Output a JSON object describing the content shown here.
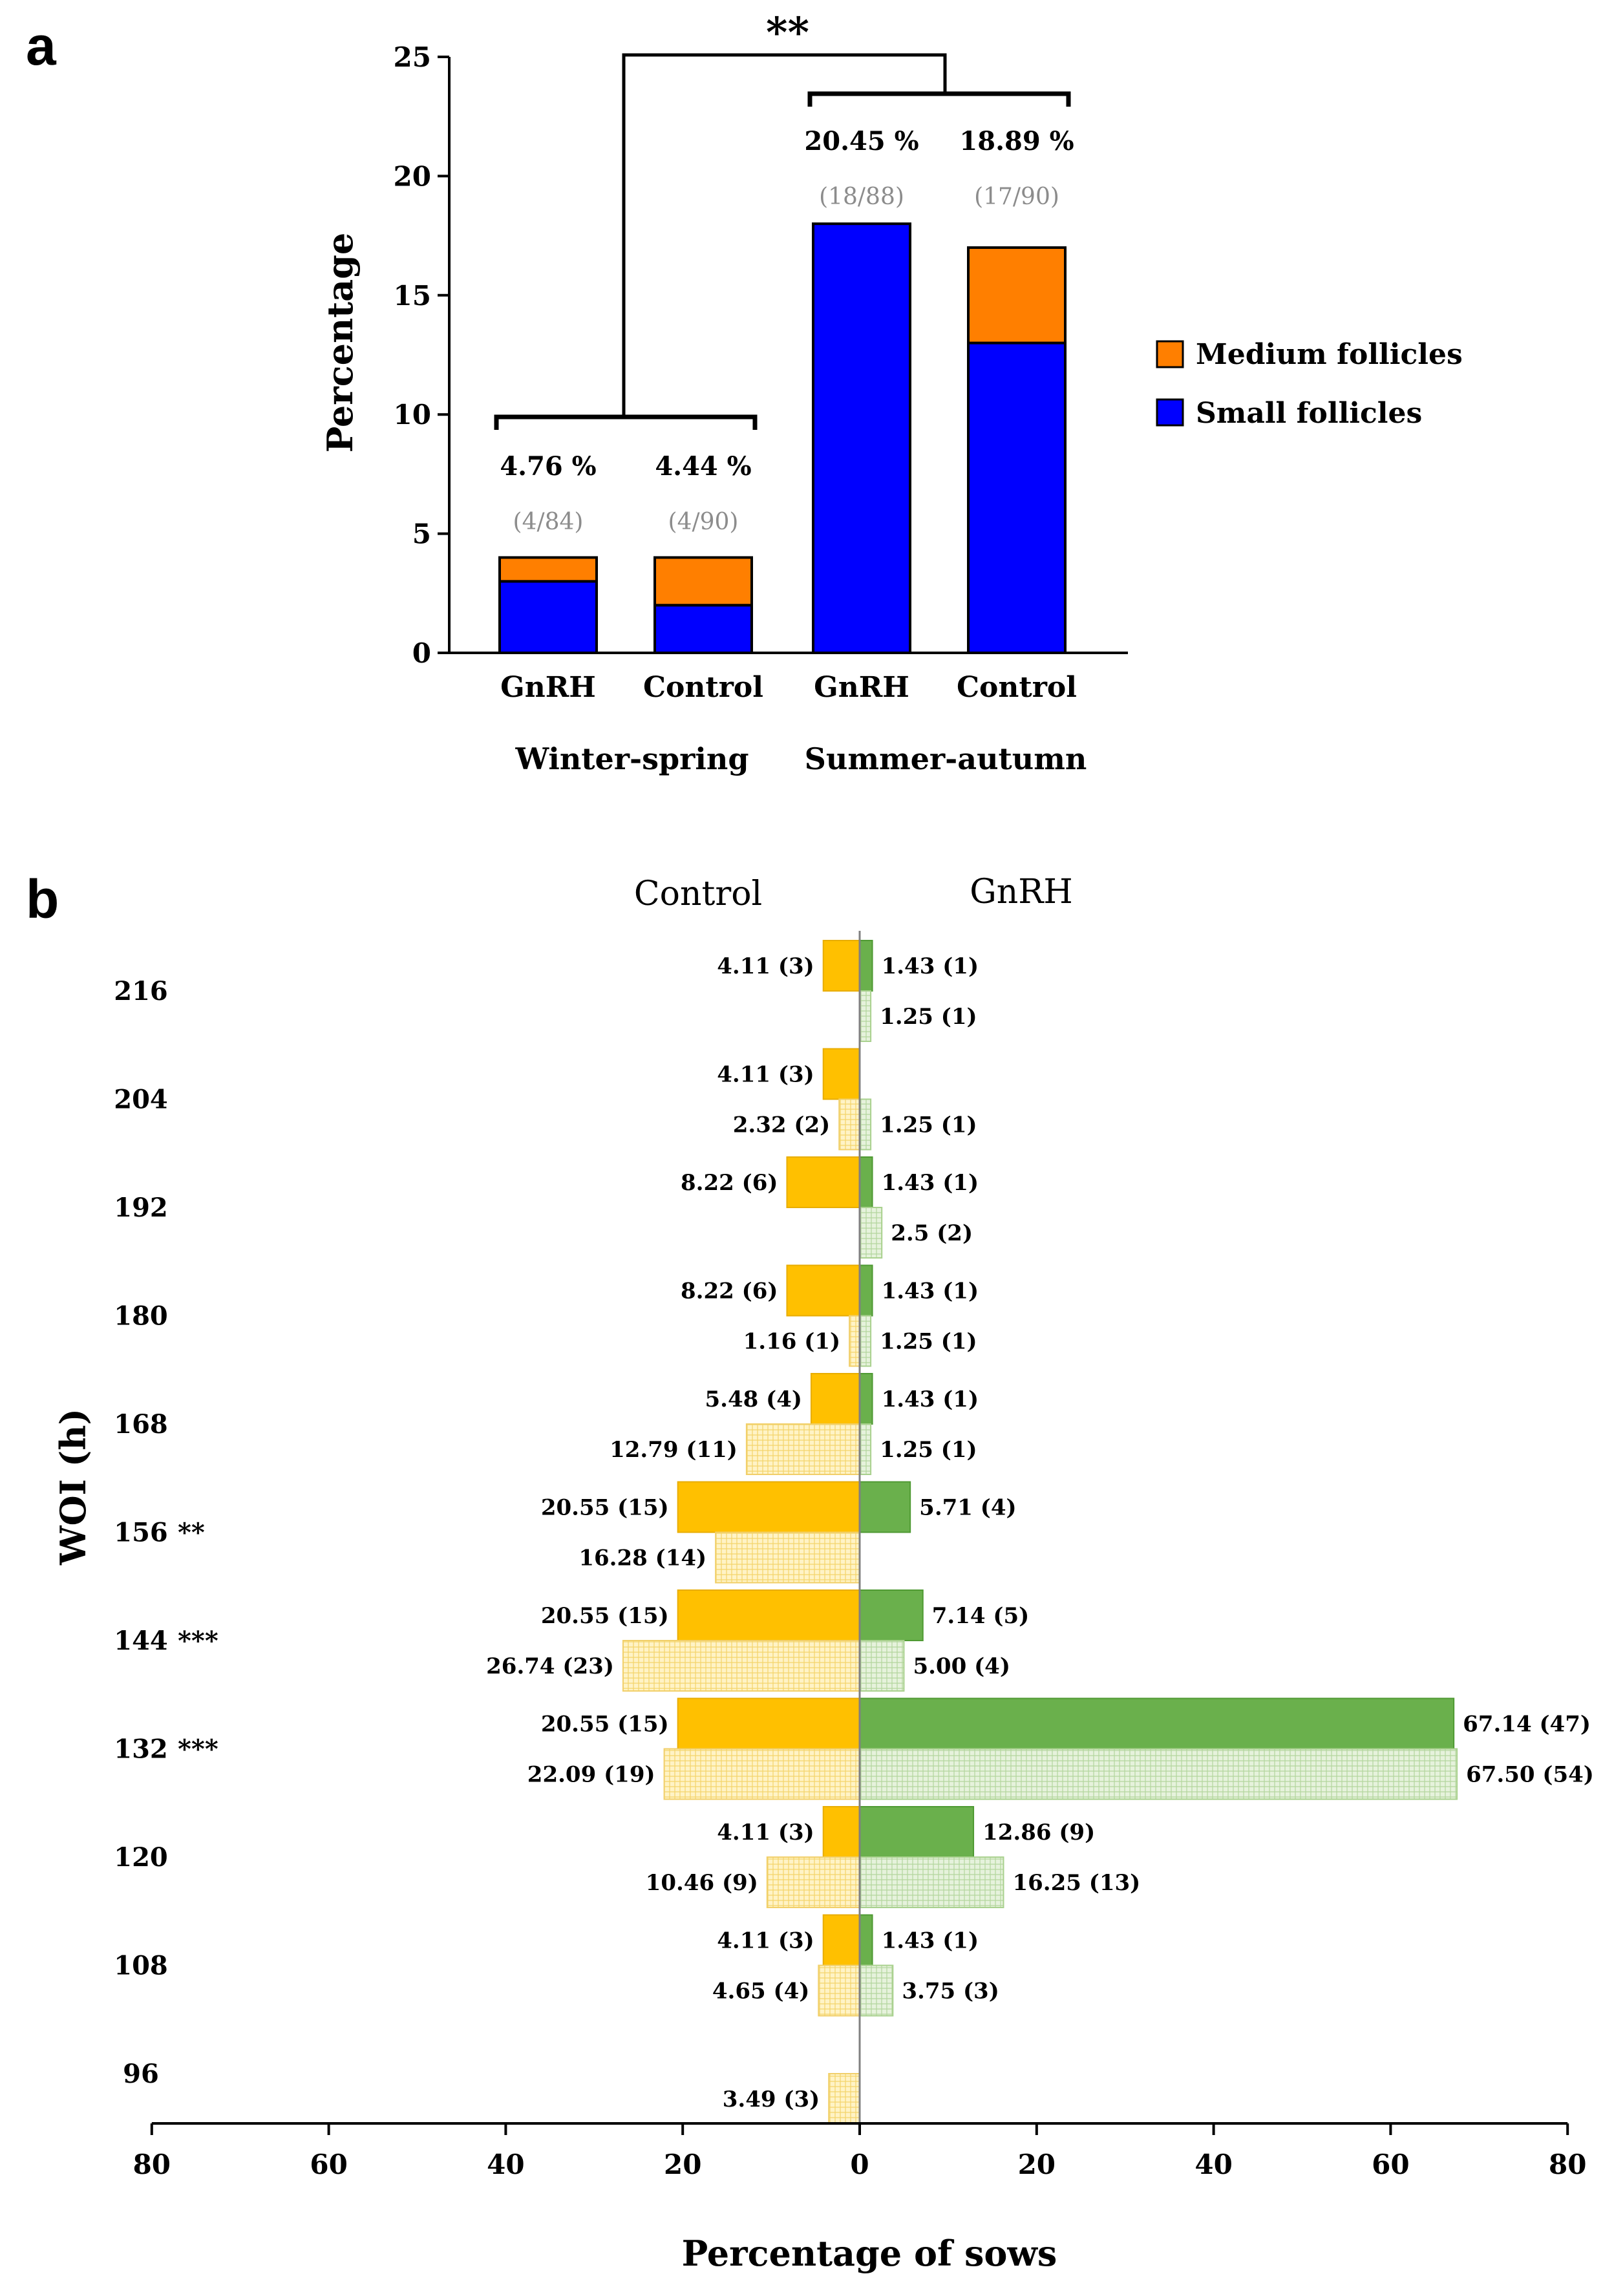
{
  "panel_a_label": "a",
  "panel_b_label": "b",
  "chart_data": [
    {
      "type": "bar",
      "stacked": true,
      "panel": "a",
      "title": "",
      "ylabel": "Percentage",
      "xlabel": "",
      "ylim": [
        0,
        25
      ],
      "yticks": [
        "0",
        "5",
        "10",
        "15",
        "20",
        "25"
      ],
      "categories": [
        "GnRH",
        "Control",
        "GnRH",
        "Control"
      ],
      "groups": [
        "Winter-spring",
        "Summer-autumn"
      ],
      "series": [
        {
          "name": "Small follicles",
          "color": "#0000ff",
          "values": [
            3,
            2,
            18,
            13
          ]
        },
        {
          "name": "Medium follicles",
          "color": "#ff7f00",
          "values": [
            1,
            2,
            0,
            4
          ]
        }
      ],
      "legend": [
        "Medium follicles",
        "Small follicles"
      ],
      "percent_labels": [
        "4.76 %",
        "4.44 %",
        "20.45 %",
        "18.89 %"
      ],
      "fraction_labels": [
        "(4/84)",
        "(4/90)",
        "(18/88)",
        "(17/90)"
      ],
      "significance": "**"
    },
    {
      "type": "bar",
      "orientation": "horizontal",
      "panel": "b",
      "left_title": "Control",
      "right_title": "GnRH",
      "xlabel": "Percentage of sows",
      "ylabel": "WOI (h)",
      "xlim": [
        -80,
        80
      ],
      "xticks": [
        "80",
        "60",
        "40",
        "20",
        "0",
        "20",
        "40",
        "60",
        "80"
      ],
      "colors": {
        "control_solid": "#ffc000",
        "control_hatch": "#fff2c2",
        "gnrh_solid": "#6ab04c",
        "gnrh_hatch": "#e4f1da"
      },
      "rows": [
        {
          "woi": "216",
          "sig": "",
          "control": [
            {
              "v": 4.11,
              "label": "4.11 (3)"
            },
            null
          ],
          "gnrh": [
            {
              "v": 1.43,
              "label": "1.43 (1)"
            },
            {
              "v": 1.25,
              "label": "1.25 (1)"
            }
          ]
        },
        {
          "woi": "204",
          "sig": "",
          "control": [
            {
              "v": 4.11,
              "label": "4.11 (3)"
            },
            {
              "v": 2.32,
              "label": "2.32 (2)"
            }
          ],
          "gnrh": [
            null,
            {
              "v": 1.25,
              "label": "1.25 (1)"
            }
          ]
        },
        {
          "woi": "192",
          "sig": "",
          "control": [
            {
              "v": 8.22,
              "label": "8.22 (6)"
            },
            null
          ],
          "gnrh": [
            {
              "v": 1.43,
              "label": "1.43 (1)"
            },
            {
              "v": 2.5,
              "label": "2.5 (2)"
            }
          ]
        },
        {
          "woi": "180",
          "sig": "",
          "control": [
            {
              "v": 8.22,
              "label": "8.22 (6)"
            },
            {
              "v": 1.16,
              "label": "1.16 (1)"
            }
          ],
          "gnrh": [
            {
              "v": 1.43,
              "label": "1.43 (1)"
            },
            {
              "v": 1.25,
              "label": "1.25 (1)"
            }
          ]
        },
        {
          "woi": "168",
          "sig": "",
          "control": [
            {
              "v": 5.48,
              "label": "5.48 (4)"
            },
            {
              "v": 12.79,
              "label": "12.79 (11)"
            }
          ],
          "gnrh": [
            {
              "v": 1.43,
              "label": "1.43 (1)"
            },
            {
              "v": 1.25,
              "label": "1.25 (1)"
            }
          ]
        },
        {
          "woi": "156",
          "sig": "**",
          "control": [
            {
              "v": 20.55,
              "label": "20.55 (15)"
            },
            {
              "v": 16.28,
              "label": "16.28 (14)"
            }
          ],
          "gnrh": [
            {
              "v": 5.71,
              "label": "5.71 (4)"
            },
            null
          ]
        },
        {
          "woi": "144",
          "sig": "***",
          "control": [
            {
              "v": 20.55,
              "label": "20.55 (15)"
            },
            {
              "v": 26.74,
              "label": "26.74 (23)"
            }
          ],
          "gnrh": [
            {
              "v": 7.14,
              "label": "7.14 (5)"
            },
            {
              "v": 5.0,
              "label": "5.00 (4)"
            }
          ]
        },
        {
          "woi": "132",
          "sig": "***",
          "control": [
            {
              "v": 20.55,
              "label": "20.55 (15)"
            },
            {
              "v": 22.09,
              "label": "22.09 (19)"
            }
          ],
          "gnrh": [
            {
              "v": 67.14,
              "label": "67.14 (47)"
            },
            {
              "v": 67.5,
              "label": "67.50 (54)"
            }
          ]
        },
        {
          "woi": "120",
          "sig": "",
          "control": [
            {
              "v": 4.11,
              "label": "4.11 (3)"
            },
            {
              "v": 10.46,
              "label": "10.46 (9)"
            }
          ],
          "gnrh": [
            {
              "v": 12.86,
              "label": "12.86 (9)"
            },
            {
              "v": 16.25,
              "label": "16.25 (13)"
            }
          ]
        },
        {
          "woi": "108",
          "sig": "",
          "control": [
            {
              "v": 4.11,
              "label": "4.11 (3)"
            },
            {
              "v": 4.65,
              "label": "4.65 (4)"
            }
          ],
          "gnrh": [
            {
              "v": 1.43,
              "label": "1.43 (1)"
            },
            {
              "v": 3.75,
              "label": "3.75 (3)"
            }
          ]
        },
        {
          "woi": "96",
          "sig": "",
          "control": [
            null,
            {
              "v": 3.49,
              "label": "3.49 (3)"
            }
          ],
          "gnrh": [
            null,
            null
          ]
        }
      ]
    }
  ]
}
